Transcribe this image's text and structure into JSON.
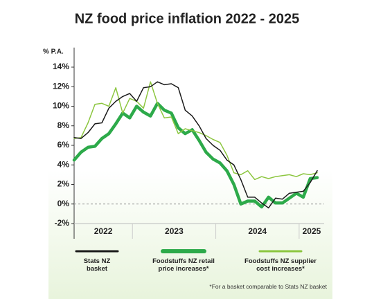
{
  "chart_data": {
    "type": "line",
    "title": "NZ food price inflation 2022 - 2025",
    "y_label": "% P.A.",
    "footnote": "*For a basket comparable to Stats NZ basket",
    "xlim": [
      2022.3,
      2025.3
    ],
    "xticks": [
      {
        "value": 2022.65,
        "label": "2022"
      },
      {
        "value": 2023.5,
        "label": "2023"
      },
      {
        "value": 2024.5,
        "label": "2024"
      },
      {
        "value": 2025.15,
        "label": "2025"
      }
    ],
    "x": [
      2022.3,
      2022.383,
      2022.467,
      2022.55,
      2022.633,
      2022.717,
      2022.8,
      2022.883,
      2022.967,
      2023.05,
      2023.133,
      2023.217,
      2023.3,
      2023.383,
      2023.467,
      2023.55,
      2023.633,
      2023.717,
      2023.8,
      2023.883,
      2023.967,
      2024.05,
      2024.133,
      2024.217,
      2024.3,
      2024.383,
      2024.467,
      2024.55,
      2024.633,
      2024.717,
      2024.8,
      2024.883,
      2024.967,
      2025.05,
      2025.133,
      2025.217
    ],
    "ylim": [
      -2,
      16
    ],
    "yticks": [
      {
        "value": -2,
        "label": "-2%"
      },
      {
        "value": 0,
        "label": "0%"
      },
      {
        "value": 2,
        "label": "2%"
      },
      {
        "value": 4,
        "label": "4%"
      },
      {
        "value": 6,
        "label": "6%"
      },
      {
        "value": 8,
        "label": "8%"
      },
      {
        "value": 10,
        "label": "10%"
      },
      {
        "value": 12,
        "label": "12%"
      },
      {
        "value": 14,
        "label": "14%"
      }
    ],
    "zero_line": true,
    "grid": false,
    "legend": "bottom",
    "series": [
      {
        "name": "Stats NZ basket",
        "color": "#1a1a1a",
        "width": 1.5,
        "values": [
          6.8,
          6.7,
          7.3,
          8.2,
          8.3,
          9.8,
          10.5,
          11.0,
          11.3,
          10.5,
          11.9,
          12.0,
          12.5,
          12.2,
          12.3,
          11.9,
          9.6,
          9.0,
          8.0,
          6.7,
          6.0,
          5.5,
          4.5,
          4.0,
          2.5,
          0.7,
          0.7,
          0.1,
          -0.4,
          0.6,
          0.5,
          1.1,
          1.2,
          1.3,
          2.2,
          3.4
        ]
      },
      {
        "name": "Foodstuffs NZ retail price increases*",
        "color": "#2daa4a",
        "width": 4.5,
        "values": [
          4.5,
          5.3,
          5.8,
          5.9,
          6.7,
          7.2,
          8.2,
          9.3,
          8.8,
          10.0,
          9.4,
          9.0,
          10.3,
          9.6,
          9.3,
          7.8,
          7.2,
          7.6,
          6.5,
          5.3,
          4.6,
          4.2,
          3.4,
          2.0,
          0.0,
          0.3,
          0.3,
          -0.3,
          0.7,
          0.1,
          0.1,
          0.6,
          1.1,
          0.7,
          2.6,
          2.7
        ]
      },
      {
        "name": "Foodstuffs NZ supplier cost increases*",
        "color": "#8cc63f",
        "width": 1.5,
        "values": [
          6.7,
          6.8,
          8.3,
          10.2,
          10.3,
          10.0,
          11.9,
          9.3,
          10.8,
          10.5,
          9.8,
          12.5,
          10.3,
          8.8,
          8.9,
          7.2,
          7.7,
          7.5,
          7.3,
          7.0,
          6.6,
          6.3,
          5.0,
          3.2,
          3.0,
          3.4,
          2.5,
          2.8,
          2.6,
          2.8,
          2.9,
          3.0,
          2.8,
          3.1,
          3.0,
          3.2
        ]
      }
    ]
  }
}
